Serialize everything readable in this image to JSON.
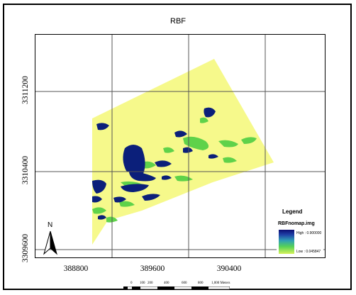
{
  "title": "RBF",
  "x_ticks": [
    "388800",
    "389600",
    "390400"
  ],
  "y_ticks": [
    "3311200",
    "3310400",
    "3309600"
  ],
  "north_label": "N",
  "legend": {
    "title": "Legend",
    "layer": "RBFnomap.img",
    "high_label": "High : 0.900000",
    "low_label": "Low : 0.045847"
  },
  "scalebar": {
    "labels": [
      "0",
      "100",
      "200",
      "400",
      "600",
      "800",
      "1,000 Meters"
    ]
  },
  "colors": {
    "yellow": "#f6f98b",
    "blue": "#0b1f7a",
    "green": "#5fd24a"
  }
}
